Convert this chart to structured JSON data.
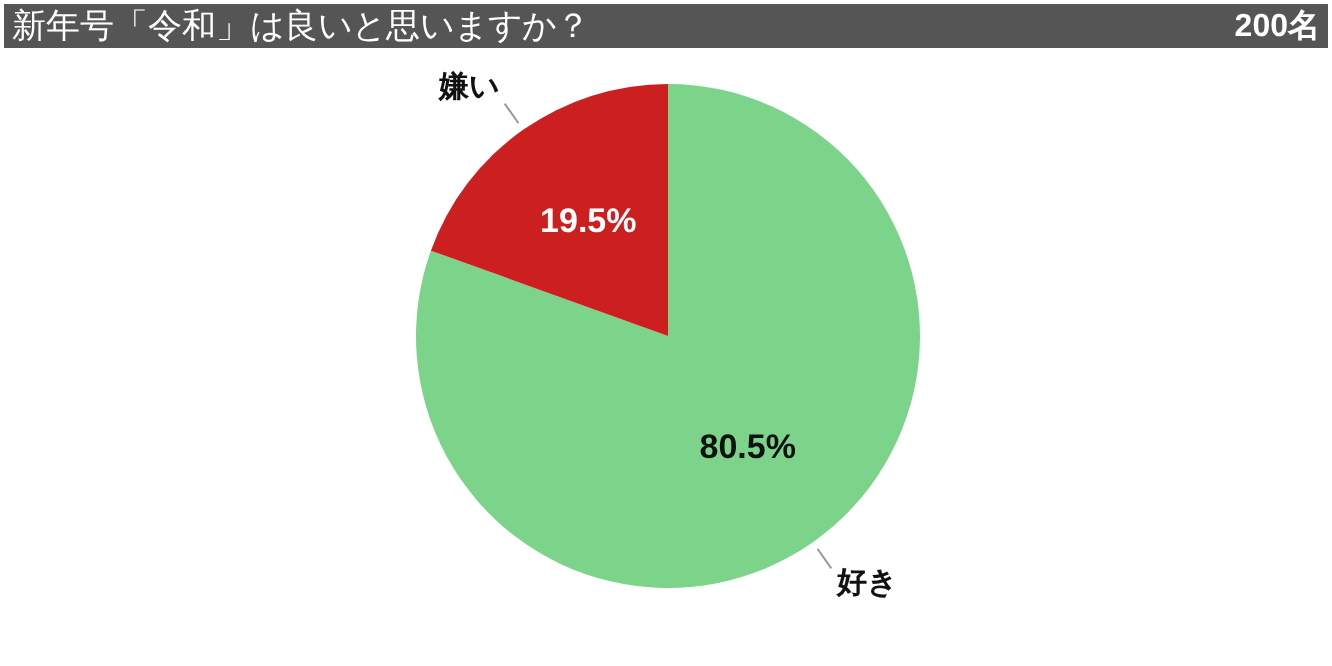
{
  "chart_data": {
    "type": "pie",
    "title": "新年号「令和」は良いと思いますか？",
    "annotations": [
      "200名"
    ],
    "categories": [
      "好き",
      "嫌い"
    ],
    "values": [
      80.5,
      19.5
    ],
    "colors": [
      "#7cd48a",
      "#cc1f1f"
    ],
    "value_labels": [
      "80.5%",
      "19.5%"
    ]
  }
}
